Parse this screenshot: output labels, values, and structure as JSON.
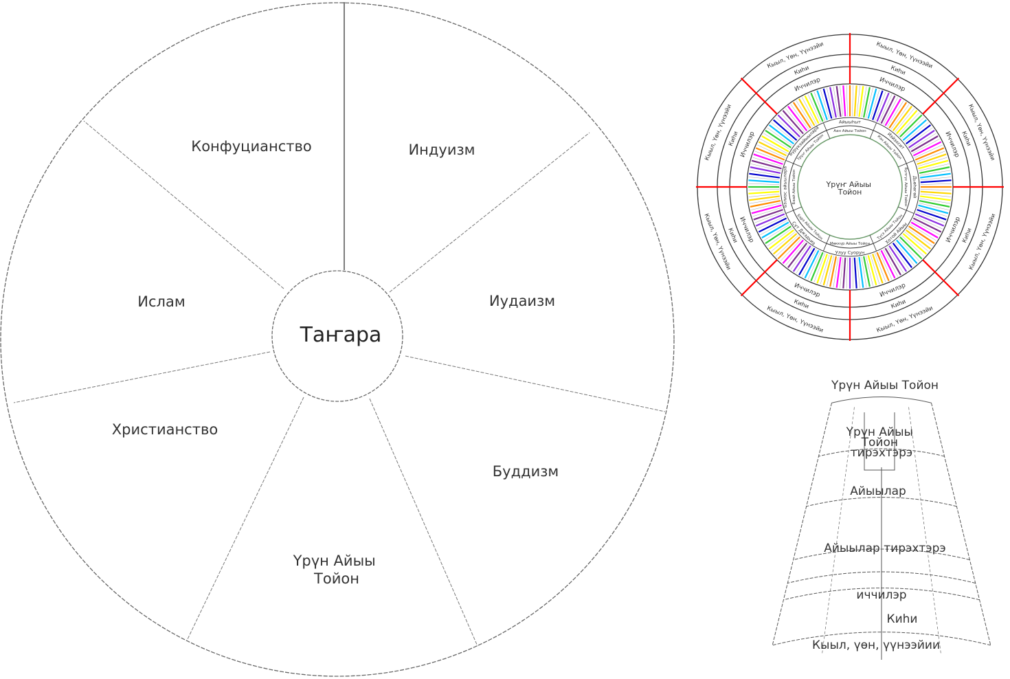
{
  "religion_wheel": {
    "center_label": "Таҥара",
    "sectors": [
      {
        "label": "Конфуцианство"
      },
      {
        "label": "Индуизм"
      },
      {
        "label": "Иудаизм"
      },
      {
        "label": "Буддизм"
      },
      {
        "label": "Үрүн Айыы Тойон"
      },
      {
        "label": "Христианство"
      },
      {
        "label": "Ислам"
      }
    ]
  },
  "cosmos_wheel": {
    "center_label": "Үрүҥ Айыы Тойон",
    "outer_ring_label": "Кыыл, Үөн, Үүнээйи",
    "kihi_label": "Киһи",
    "ichchi_label": "Иччилэр",
    "deity_ring": [
      "Айыыһыт",
      "Иэйэхсит",
      "Дьөһөгөй",
      "Хотой Айыы",
      "Улуу Суорун",
      "Сүт Джэдьиэ",
      "Бэлиэс айыылара",
      "Бүрүкэайыылара"
    ],
    "inner_ring": [
      "Аан Айыы Тойон",
      "Кэн Айыы Тойон",
      "Булгүс Айыы Тойон",
      "Тусэ Айыы Тойон",
      "Мөккүр Айыы Тойон",
      "Бэрэ Айыы Тойон",
      "Баай Айыы Тойон",
      "Үрүҥ Айыы Тойон"
    ],
    "spoke_colors": [
      "#ff8c00",
      "#ffd700",
      "#ffff00",
      "#32cd32",
      "#00bfff",
      "#0000cd",
      "#8a2be2",
      "#7b2d8b",
      "#ff00ff"
    ],
    "axis_color": "#ff0000"
  },
  "hierarchy_fan": {
    "title": "Үрүн Айыы Тойон",
    "levels": [
      "Үрүн Айыы Тойон тирэхтэрэ",
      "Айыылар",
      "Айыылар тирэхтэрэ",
      "иччилэр",
      "Киһи",
      "Кыыл, үөн, үүнээйии"
    ]
  }
}
